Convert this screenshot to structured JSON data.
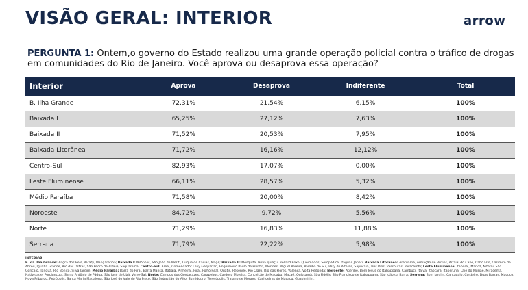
{
  "header": {
    "title": "VISÃO GERAL: INTERIOR",
    "logo": "arrow"
  },
  "question": {
    "label": "PERGUNTA 1:",
    "text": "Ontem,o governo do Estado realizou uma grande operação policial contra o tráfico de drogas em comunidades do Rio de Janeiro. Você aprova ou desaprova essa operação?"
  },
  "table": {
    "columns": [
      "Interior",
      "Aprova",
      "Desaprova",
      "Indiferente",
      "Total"
    ],
    "rows": [
      [
        "B. Ilha Grande",
        "72,31%",
        "21,54%",
        "6,15%",
        "100%"
      ],
      [
        "Baixada I",
        "65,25%",
        "27,12%",
        "7,63%",
        "100%"
      ],
      [
        "Baixada II",
        "71,52%",
        "20,53%",
        "7,95%",
        "100%"
      ],
      [
        "Baixada Litorânea",
        "71,72%",
        "16,16%",
        "12,12%",
        "100%"
      ],
      [
        "Centro-Sul",
        "82,93%",
        "17,07%",
        "0,00%",
        "100%"
      ],
      [
        "Leste Fluminense",
        "66,11%",
        "28,57%",
        "5,32%",
        "100%"
      ],
      [
        "Médio Paraíba",
        "71,58%",
        "20,00%",
        "8,42%",
        "100%"
      ],
      [
        "Noroeste",
        "84,72%",
        "9,72%",
        "5,56%",
        "100%"
      ],
      [
        "Norte",
        "71,29%",
        "16,83%",
        "11,88%",
        "100%"
      ],
      [
        "Serrana",
        "71,79%",
        "22,22%",
        "5,98%",
        "100%"
      ]
    ]
  },
  "footnote": {
    "title": "INTERIOR",
    "entries": [
      {
        "label": "B. da Ilha Grande:",
        "text": "Angra dos Reis, Paraty, Mangaratiba;"
      },
      {
        "label": "Baixada I:",
        "text": "Nilópolis, São João de Meriti, Duque de Caxias, Magé;"
      },
      {
        "label": "Baixada II:",
        "text": "Mesquita, Nova Iguaçu, Belford Roxo, Queimados, Seropédica, Itaguaí, Japeri;"
      },
      {
        "label": "Baixada Litorânea:",
        "text": "Araruama, Armação de Búzios, Arraial do Cabo, Cabo Frio, Casimiro de Abreu, Iguaba Grande, Rio das Ostras, São Pedro da Aldeia, Saquarema;"
      },
      {
        "label": "Centro-Sul:",
        "text": "Areal, Comendador Levy Gasparian, Engenheiro Paulo de Frontin, Mendes, Miguel Pereira, Paraíba do Sul, Paty do Alferes, Sapucaia, Três Rios, Vassouras, Paracambi;"
      },
      {
        "label": "Leste Fluminense:",
        "text": "Itaboraí, Maricá, Niterói, São Gonçalo, Tanguá, Rio Bonito, Silva Jardim;"
      },
      {
        "label": "Médio Paraíba:",
        "text": "Barra do Piraí, Barra Mansa, Itatiaia, Pinheiral, Piraí, Porto Real, Quatis, Resende, Rio Claro, Rio das Flores, Valença, Volta Redonda;"
      },
      {
        "label": "Noroeste:",
        "text": "Aperibé, Bom Jesus do Itabapoana, Cambuci, Italva, Itaocara, Itaperuna, Laje do Muriaé, Miracema, Natividade, Porciúncula, Santo Antônio de Pádua, São José de Ubá, Varre-Sai;"
      },
      {
        "label": "Norte:",
        "text": "Campos dos Goytacazes, Carapebus, Cardoso Moreira, Conceição de Macabu, Macaé, Quissamã, São Fidélis, São Francisco de Itabapoana, São João da Barra;"
      },
      {
        "label": "Serrana:",
        "text": "Bom Jardim, Cantagalo, Cordeiro, Duas Barras, Macuco, Nova Friburgo, Petrópolis, Santa Maria Madalena, São José do Vale do Rio Preto, São Sebastião do Alto, Sumidouro, Teresópolis, Trajano de Moraes, Cachoeiras de Macacu, Guapimirim."
      }
    ]
  }
}
